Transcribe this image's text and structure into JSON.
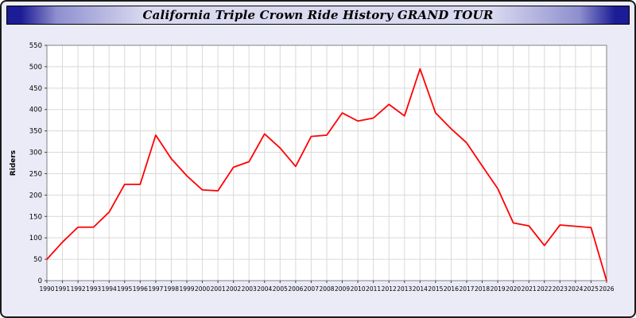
{
  "title": "California Triple Crown Ride History GRAND TOUR",
  "colors": {
    "frame_background": "#ebebf7",
    "titlebar_edge": "#1c1c96",
    "titlebar_center": "#d9d9f0",
    "plot_background": "#ffffff",
    "plot_border": "#808080",
    "grid": "#d9d9d9",
    "line": "#ff0000",
    "text": "#000000"
  },
  "chart_data": {
    "type": "line",
    "title": "California Triple Crown Ride History GRAND TOUR",
    "xlabel": "",
    "ylabel": "Riders",
    "ylim": [
      0,
      550
    ],
    "ytick_step": 50,
    "grid": true,
    "legend": "none",
    "line_color": "#ff0000",
    "x": [
      1990,
      1991,
      1992,
      1993,
      1994,
      1995,
      1996,
      1997,
      1998,
      1999,
      2000,
      2001,
      2002,
      2003,
      2004,
      2005,
      2006,
      2007,
      2008,
      2009,
      2010,
      2011,
      2012,
      2013,
      2014,
      2015,
      2016,
      2017,
      2018,
      2019,
      2020,
      2021,
      2022,
      2023,
      2024,
      2025,
      2026
    ],
    "series": [
      {
        "name": "Riders",
        "values": [
          50,
          90,
          125,
          125,
          160,
          225,
          225,
          340,
          285,
          245,
          212,
          210,
          265,
          278,
          343,
          310,
          267,
          337,
          340,
          392,
          373,
          380,
          412,
          385,
          495,
          392,
          355,
          322,
          268,
          215,
          135,
          128,
          82,
          130,
          127,
          124,
          0
        ]
      }
    ]
  }
}
